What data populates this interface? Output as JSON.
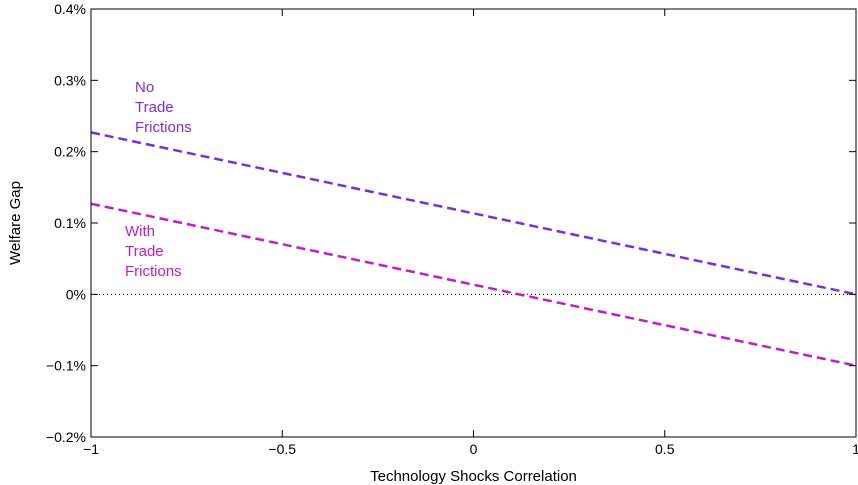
{
  "chart_data": {
    "type": "line",
    "xlabel": "Technology Shocks Correlation",
    "ylabel": "Welfare Gap",
    "xlim": [
      -1,
      1
    ],
    "ylim": [
      -0.2,
      0.4
    ],
    "x_ticks": [
      -1,
      -0.5,
      0,
      0.5,
      1
    ],
    "x_tick_labels": [
      "−1",
      "−0.5",
      "0",
      "0.5",
      "1"
    ],
    "y_ticks": [
      -0.2,
      -0.1,
      0,
      0.1,
      0.2,
      0.3,
      0.4
    ],
    "y_tick_labels": [
      "−0.2%",
      "−0.1%",
      "0%",
      "0.1%",
      "0.2%",
      "0.3%",
      "0.4%"
    ],
    "grid": false,
    "series": [
      {
        "x": [
          -1,
          1
        ],
        "y": [
          0.227,
          0.0
        ],
        "color": "#7b2ee0",
        "line_style": "dashed"
      },
      {
        "x": [
          -1,
          1
        ],
        "y": [
          0.127,
          -0.1
        ],
        "color": "#c41cc8",
        "line_style": "dashed"
      }
    ],
    "reference_line": {
      "y": 0,
      "style": "dotted",
      "color": "#000000"
    },
    "annotations": [
      {
        "lines": [
          "No",
          "Trade",
          "Frictions"
        ],
        "color": "#7b2ee0"
      },
      {
        "lines": [
          "With",
          "Trade",
          "Frictions"
        ],
        "color": "#c41cc8"
      }
    ]
  }
}
